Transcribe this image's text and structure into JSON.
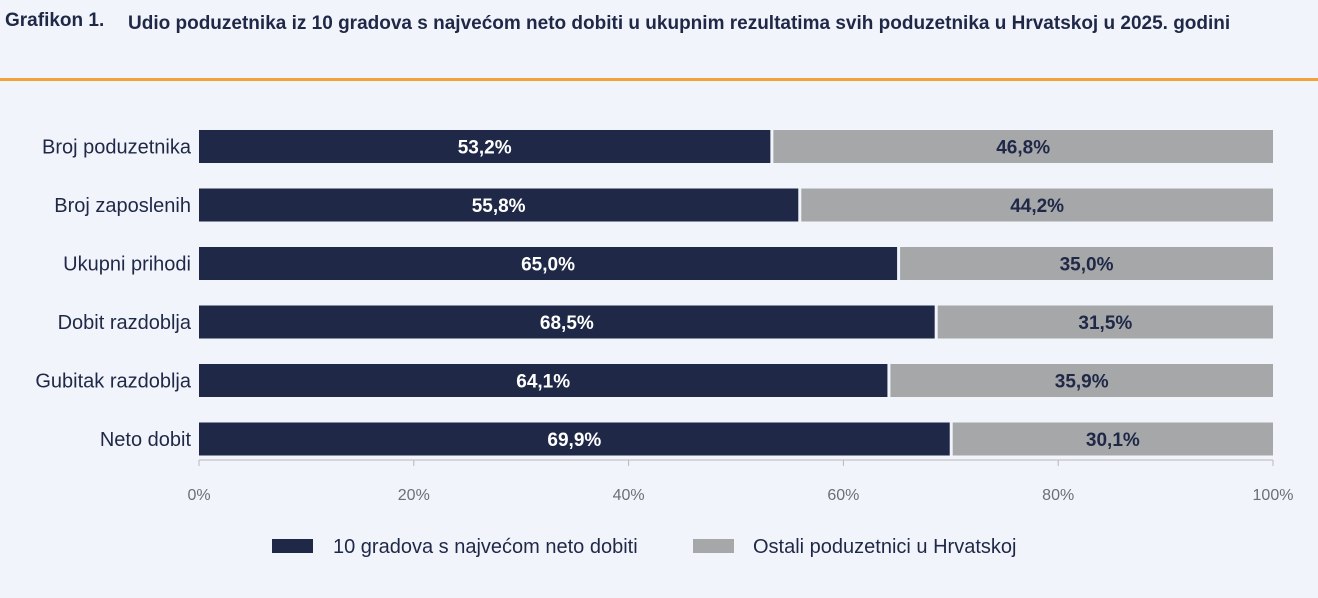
{
  "header": {
    "chart_number": "Grafikon 1.",
    "title": "Udio poduzetnika iz 10 gradova s najvećom neto dobiti u ukupnim rezultatima svih poduzetnika u Hrvatskoj u 2025. godini"
  },
  "chart_data": {
    "type": "bar",
    "orientation": "horizontal",
    "stacked": true,
    "categories": [
      "Broj poduzetnika",
      "Broj zaposlenih",
      "Ukupni prihodi",
      "Dobit razdoblja",
      "Gubitak razdoblja",
      "Neto dobit"
    ],
    "series": [
      {
        "name": "10 gradova s najvećom neto dobiti",
        "values": [
          53.2,
          55.8,
          65.0,
          68.5,
          64.1,
          69.9
        ],
        "labels": [
          "53,2%",
          "55,8%",
          "65,0%",
          "68,5%",
          "64,1%",
          "69,9%"
        ],
        "color": "#1f2847",
        "label_color": "#ffffff"
      },
      {
        "name": "Ostali poduzetnici u Hrvatskoj",
        "values": [
          46.8,
          44.2,
          35.0,
          31.5,
          35.9,
          30.1
        ],
        "labels": [
          "46,8%",
          "44,2%",
          "35,0%",
          "31,5%",
          "35,9%",
          "30,1%"
        ],
        "color": "#a6a7a9",
        "label_color": "#1f2847"
      }
    ],
    "xlim": [
      0,
      100
    ],
    "x_ticks": [
      0,
      20,
      40,
      60,
      80,
      100
    ],
    "x_tick_labels": [
      "0%",
      "20%",
      "40%",
      "60%",
      "80%",
      "100%"
    ],
    "grid": false,
    "legend_position": "bottom"
  }
}
